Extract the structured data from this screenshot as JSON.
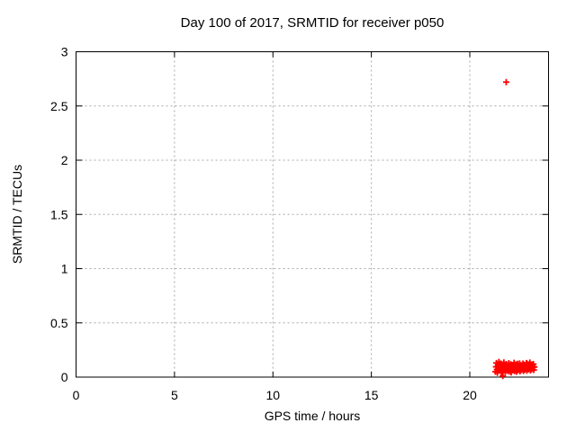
{
  "chart_data": {
    "type": "scatter",
    "title": "Day 100 of 2017, SRMTID for receiver p050",
    "xlabel": "GPS time / hours",
    "ylabel": "SRMTID / TECUs",
    "xlim": [
      0,
      24
    ],
    "ylim": [
      0,
      3
    ],
    "xticks": [
      0,
      5,
      10,
      15,
      20
    ],
    "yticks": [
      0,
      0.5,
      1,
      1.5,
      2,
      2.5,
      3
    ],
    "grid": true,
    "grid_style": "dashed",
    "legend": "none",
    "marker_shape": "plus",
    "marker_size": 7,
    "colors": {
      "marker": "#ff0000",
      "grid": "#a8a8a8",
      "frame": "#000000",
      "background": "#ffffff"
    },
    "series": [
      {
        "name": "SRMTID",
        "points": [
          [
            21.85,
            2.72
          ],
          [
            21.68,
            0.01
          ],
          [
            21.3,
            0.05
          ],
          [
            21.33,
            0.095
          ],
          [
            21.35,
            0.13
          ],
          [
            21.38,
            0.07
          ],
          [
            21.4,
            0.04
          ],
          [
            21.43,
            0.11
          ],
          [
            21.45,
            0.085
          ],
          [
            21.48,
            0.14
          ],
          [
            21.5,
            0.06
          ],
          [
            21.53,
            0.1
          ],
          [
            21.55,
            0.075
          ],
          [
            21.58,
            0.125
          ],
          [
            21.6,
            0.045
          ],
          [
            21.63,
            0.09
          ],
          [
            21.65,
            0.115
          ],
          [
            21.68,
            0.055
          ],
          [
            21.7,
            0.08
          ],
          [
            21.73,
            0.135
          ],
          [
            21.75,
            0.065
          ],
          [
            21.78,
            0.105
          ],
          [
            21.8,
            0.048
          ],
          [
            21.83,
            0.092
          ],
          [
            21.85,
            0.12
          ],
          [
            21.88,
            0.072
          ],
          [
            21.9,
            0.058
          ],
          [
            21.93,
            0.108
          ],
          [
            21.95,
            0.082
          ],
          [
            21.98,
            0.128
          ],
          [
            22.0,
            0.052
          ],
          [
            22.03,
            0.098
          ],
          [
            22.05,
            0.068
          ],
          [
            22.08,
            0.118
          ],
          [
            22.1,
            0.044
          ],
          [
            22.13,
            0.088
          ],
          [
            22.15,
            0.112
          ],
          [
            22.18,
            0.062
          ],
          [
            22.2,
            0.102
          ],
          [
            22.23,
            0.078
          ],
          [
            22.25,
            0.132
          ],
          [
            22.28,
            0.056
          ],
          [
            22.3,
            0.096
          ],
          [
            22.33,
            0.07
          ],
          [
            22.35,
            0.116
          ],
          [
            22.38,
            0.05
          ],
          [
            22.4,
            0.09
          ],
          [
            22.43,
            0.122
          ],
          [
            22.45,
            0.064
          ],
          [
            22.48,
            0.104
          ],
          [
            22.5,
            0.076
          ],
          [
            22.53,
            0.126
          ],
          [
            22.55,
            0.054
          ],
          [
            22.58,
            0.094
          ],
          [
            22.6,
            0.11
          ],
          [
            22.63,
            0.066
          ],
          [
            22.65,
            0.1
          ],
          [
            22.68,
            0.08
          ],
          [
            22.7,
            0.124
          ],
          [
            22.73,
            0.058
          ],
          [
            22.75,
            0.092
          ],
          [
            22.78,
            0.114
          ],
          [
            22.8,
            0.068
          ],
          [
            22.83,
            0.106
          ],
          [
            22.85,
            0.084
          ],
          [
            22.88,
            0.13
          ],
          [
            22.9,
            0.06
          ],
          [
            22.93,
            0.098
          ],
          [
            22.95,
            0.118
          ],
          [
            22.98,
            0.072
          ],
          [
            23.0,
            0.108
          ],
          [
            23.03,
            0.086
          ],
          [
            23.05,
            0.134
          ],
          [
            23.08,
            0.062
          ],
          [
            23.1,
            0.096
          ],
          [
            23.13,
            0.116
          ],
          [
            23.15,
            0.074
          ],
          [
            23.18,
            0.102
          ],
          [
            23.2,
            0.088
          ],
          [
            23.23,
            0.12
          ],
          [
            23.25,
            0.066
          ],
          [
            23.28,
            0.094
          ]
        ]
      }
    ]
  }
}
